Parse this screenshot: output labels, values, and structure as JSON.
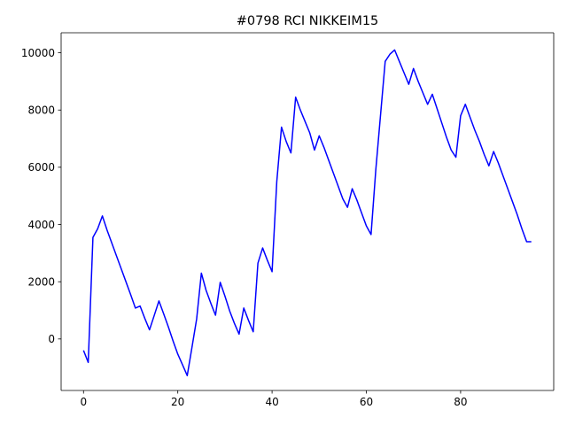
{
  "chart_data": {
    "type": "line",
    "title": "#0798 RCI NIKKEIM15",
    "xlabel": "",
    "ylabel": "",
    "xlim": [
      -4.75,
      99.75
    ],
    "ylim": [
      -1800,
      10700
    ],
    "xticks": [
      0,
      20,
      40,
      60,
      80
    ],
    "yticks": [
      0,
      2000,
      4000,
      6000,
      8000,
      10000
    ],
    "grid": false,
    "legend": "none",
    "series": [
      {
        "color": "#0000ff",
        "x": [
          0,
          1,
          2,
          3,
          4,
          5,
          6,
          7,
          8,
          9,
          10,
          11,
          12,
          13,
          14,
          15,
          16,
          17,
          18,
          19,
          20,
          21,
          22,
          23,
          24,
          25,
          26,
          27,
          28,
          29,
          30,
          31,
          32,
          33,
          34,
          35,
          36,
          37,
          38,
          39,
          40,
          41,
          42,
          43,
          44,
          45,
          46,
          47,
          48,
          49,
          50,
          51,
          52,
          53,
          54,
          55,
          56,
          57,
          58,
          59,
          60,
          61,
          62,
          63,
          64,
          65,
          66,
          67,
          68,
          69,
          70,
          71,
          72,
          73,
          74,
          75,
          76,
          77,
          78,
          79,
          80,
          81,
          82,
          83,
          84,
          85,
          86,
          87,
          88,
          89,
          90,
          91,
          92,
          93,
          94,
          95
        ],
        "y": [
          -400,
          -820,
          3550,
          3850,
          4300,
          3800,
          3350,
          2900,
          2450,
          2000,
          1550,
          1080,
          1150,
          720,
          320,
          820,
          1330,
          880,
          420,
          -70,
          -530,
          -900,
          -1280,
          -300,
          700,
          2300,
          1700,
          1250,
          830,
          1980,
          1500,
          980,
          550,
          170,
          1080,
          650,
          250,
          2650,
          3180,
          2750,
          2350,
          5500,
          7400,
          6900,
          6500,
          8450,
          8000,
          7600,
          7200,
          6600,
          7100,
          6700,
          6250,
          5800,
          5350,
          4900,
          4600,
          5250,
          4850,
          4400,
          3950,
          3650,
          5900,
          7800,
          9700,
          9950,
          10100,
          9700,
          9300,
          8900,
          9450,
          9000,
          8600,
          8200,
          8550,
          8050,
          7550,
          7050,
          6600,
          6350,
          7800,
          8200,
          7750,
          7300,
          6900,
          6450,
          6050,
          6550,
          6150,
          5700,
          5250,
          4800,
          4350,
          3850,
          3400,
          3400
        ]
      }
    ]
  }
}
